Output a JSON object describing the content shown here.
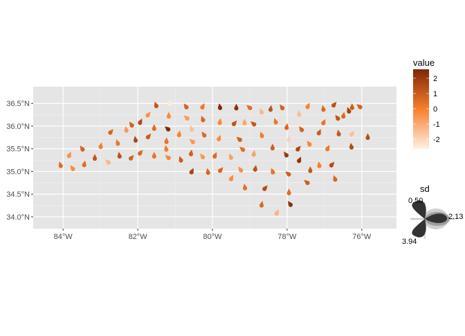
{
  "chart_data": {
    "type": "scatter",
    "title": "",
    "xlabel": "",
    "ylabel": "",
    "xlim": [
      -84.8,
      -75.07
    ],
    "ylim": [
      33.74,
      36.87
    ],
    "grid": true,
    "x_ticks": [
      -84,
      -82,
      -80,
      -78,
      -76
    ],
    "x_tick_labels": [
      "84°W",
      "82°W",
      "80°W",
      "78°W",
      "76°W"
    ],
    "y_ticks": [
      34.0,
      34.5,
      35.0,
      35.5,
      36.0,
      36.5
    ],
    "y_tick_labels": [
      "34.0°N",
      "34.5°N",
      "35.0°N",
      "35.5°N",
      "36.0°N",
      "36.5°N"
    ],
    "color_legend": {
      "title": "value",
      "ticks": [
        2,
        1,
        0,
        -1,
        -2
      ],
      "tick_labels": [
        "2",
        "1",
        "0",
        "-1",
        "-2"
      ],
      "range": [
        -2.64,
        2.59
      ],
      "low_color": "#fff1e4",
      "mid_color": "#f87f2c",
      "high_color": "#7f2704",
      "placement": "right"
    },
    "glyph_legend": {
      "title": "sd",
      "labels": [
        "0.50",
        "2.13",
        "3.94"
      ],
      "placement": "right"
    },
    "points": [
      [
        -81.51,
        36.46,
        1.2
      ],
      [
        -81.14,
        36.51,
        -2.5
      ],
      [
        -80.71,
        36.43,
        0.8
      ],
      [
        -80.26,
        36.43,
        0.2
      ],
      [
        -79.8,
        36.42,
        2.5
      ],
      [
        -81.72,
        36.25,
        -0.5
      ],
      [
        -81.17,
        36.23,
        -0.3
      ],
      [
        -80.69,
        36.18,
        -0.7
      ],
      [
        -80.26,
        36.15,
        0.7
      ],
      [
        -79.8,
        36.09,
        -0.2
      ],
      [
        -82.17,
        36.03,
        0.8
      ],
      [
        -81.93,
        36.09,
        1.5
      ],
      [
        -82.31,
        35.92,
        -0.6
      ],
      [
        -82.72,
        35.87,
        0.7
      ],
      [
        -81.56,
        35.96,
        0.5
      ],
      [
        -81.2,
        35.94,
        2.5
      ],
      [
        -80.56,
        35.94,
        -1.5
      ],
      [
        -80.89,
        35.82,
        -0.1
      ],
      [
        -80.23,
        35.81,
        0.6
      ],
      [
        -79.82,
        35.73,
        -0.3
      ],
      [
        -82.06,
        35.7,
        1.6
      ],
      [
        -81.71,
        35.77,
        1.0
      ],
      [
        -81.23,
        35.67,
        0.3
      ],
      [
        -80.54,
        35.66,
        -0.6
      ],
      [
        -82.54,
        35.63,
        0.2
      ],
      [
        -82.99,
        35.56,
        0.0
      ],
      [
        -83.49,
        35.5,
        0.8
      ],
      [
        -83.83,
        35.36,
        -0.5
      ],
      [
        -81.24,
        35.5,
        0.0
      ],
      [
        -81.93,
        35.41,
        0.6
      ],
      [
        -81.56,
        35.35,
        0.3
      ],
      [
        -81.19,
        35.31,
        -0.2
      ],
      [
        -80.85,
        35.26,
        1.0
      ],
      [
        -80.57,
        35.4,
        0.9
      ],
      [
        -80.27,
        35.33,
        -0.6
      ],
      [
        -79.93,
        35.35,
        0.6
      ],
      [
        -82.49,
        35.35,
        1.3
      ],
      [
        -82.17,
        35.3,
        0.8
      ],
      [
        -83.15,
        35.3,
        1.2
      ],
      [
        -82.8,
        35.21,
        -1.3
      ],
      [
        -84.07,
        35.14,
        0.5
      ],
      [
        -83.43,
        35.16,
        0.5
      ],
      [
        -83.75,
        35.07,
        -0.3
      ],
      [
        -80.55,
        35.0,
        1.7
      ],
      [
        -80.12,
        34.99,
        0.7
      ],
      [
        -79.78,
        35.03,
        0.7
      ],
      [
        -79.36,
        36.41,
        2.3
      ],
      [
        -79.01,
        36.41,
        0.5
      ],
      [
        -78.69,
        36.32,
        -1.3
      ],
      [
        -78.44,
        36.38,
        1.2
      ],
      [
        -78.14,
        36.41,
        0.8
      ],
      [
        -77.44,
        36.44,
        -0.1
      ],
      [
        -77.03,
        36.38,
        0.6
      ],
      [
        -76.74,
        36.47,
        1.3
      ],
      [
        -76.26,
        36.42,
        1.0
      ],
      [
        -76.06,
        36.43,
        0.8
      ],
      [
        -76.35,
        36.34,
        1.7
      ],
      [
        -76.49,
        36.23,
        0.6
      ],
      [
        -76.65,
        36.18,
        1.2
      ],
      [
        -77.02,
        36.08,
        0.3
      ],
      [
        -77.68,
        36.27,
        -1.5
      ],
      [
        -79.41,
        36.06,
        1.2
      ],
      [
        -79.14,
        36.08,
        -0.9
      ],
      [
        -78.9,
        36.05,
        1.1
      ],
      [
        -78.31,
        36.1,
        0.2
      ],
      [
        -78.01,
        35.98,
        0.6
      ],
      [
        -77.62,
        35.93,
        0.8
      ],
      [
        -77.14,
        35.86,
        1.0
      ],
      [
        -76.62,
        35.84,
        1.1
      ],
      [
        -76.26,
        35.83,
        -1.5
      ],
      [
        -75.84,
        35.76,
        1.4
      ],
      [
        -79.28,
        35.71,
        0.9
      ],
      [
        -78.68,
        35.8,
        0.0
      ],
      [
        -77.95,
        35.71,
        -1.9
      ],
      [
        -77.41,
        35.61,
        -0.2
      ],
      [
        -76.91,
        35.51,
        0.2
      ],
      [
        -76.28,
        35.55,
        1.5
      ],
      [
        -77.7,
        35.5,
        1.6
      ],
      [
        -78.39,
        35.53,
        0.9
      ],
      [
        -79.2,
        35.49,
        0.4
      ],
      [
        -79.51,
        35.32,
        -0.8
      ],
      [
        -78.89,
        35.39,
        -0.8
      ],
      [
        -78.03,
        35.37,
        2.0
      ],
      [
        -77.67,
        35.25,
        2.2
      ],
      [
        -77.14,
        35.14,
        0.0
      ],
      [
        -76.8,
        35.15,
        1.5
      ],
      [
        -77.38,
        35.03,
        1.1
      ],
      [
        -77.97,
        34.95,
        0.9
      ],
      [
        -78.39,
        35.0,
        0.3
      ],
      [
        -78.85,
        35.06,
        1.3
      ],
      [
        -79.25,
        35.04,
        -0.4
      ],
      [
        -79.49,
        34.85,
        -0.3
      ],
      [
        -79.13,
        34.65,
        0.4
      ],
      [
        -78.59,
        34.63,
        1.5
      ],
      [
        -77.95,
        34.54,
        0.5
      ],
      [
        -77.47,
        34.76,
        0.9
      ],
      [
        -76.72,
        34.84,
        0.7
      ],
      [
        -78.68,
        34.27,
        0.6
      ],
      [
        -77.92,
        34.28,
        2.3
      ],
      [
        -78.27,
        34.09,
        -1.2
      ]
    ]
  }
}
